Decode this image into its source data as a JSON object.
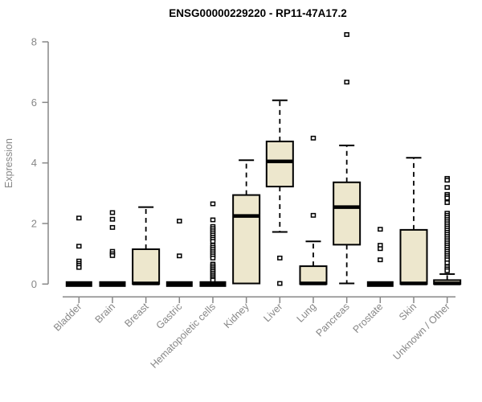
{
  "colors": {
    "background": "#ffffff",
    "box_fill": "#EDE7CD",
    "box_border": "#000000",
    "median": "#000000",
    "whisker": "#000000",
    "axis": "#878787",
    "label_text": "#878787",
    "title_text": "#000000"
  },
  "chart_data": {
    "type": "boxplot",
    "title": "ENSG00000229220 - RP11-47A17.2",
    "xlabel": "",
    "ylabel": "Expression",
    "ylim": [
      0,
      8
    ],
    "yticks": [
      0,
      2,
      4,
      6,
      8
    ],
    "grid": false,
    "legend": null,
    "whisker_style": "dashed",
    "outlier_marker": "open-square",
    "categories": [
      "Bladder",
      "Brain",
      "Breast",
      "Gastric",
      "Hematopoietic cells",
      "Kidney",
      "Liver",
      "Lung",
      "Pancreas",
      "Prostate",
      "Skin",
      "Unknown / Other"
    ],
    "series": [
      {
        "name": "Bladder",
        "q1": 0,
        "median": 0,
        "q3": 0,
        "whisker_low": 0,
        "whisker_high": 0,
        "outliers": [
          2.18,
          1.25,
          0.76,
          0.68,
          0.62,
          0.55
        ]
      },
      {
        "name": "Brain",
        "q1": 0,
        "median": 0,
        "q3": 0,
        "whisker_low": 0,
        "whisker_high": 0,
        "outliers": [
          2.36,
          2.14,
          1.87,
          1.08,
          1.0,
          0.94
        ]
      },
      {
        "name": "Breast",
        "q1": 0,
        "median": 0.02,
        "q3": 1.15,
        "whisker_low": 0,
        "whisker_high": 2.54,
        "outliers": []
      },
      {
        "name": "Gastric",
        "q1": 0,
        "median": 0,
        "q3": 0,
        "whisker_low": 0,
        "whisker_high": 0,
        "outliers": [
          2.08,
          0.93
        ]
      },
      {
        "name": "Hematopoietic cells",
        "q1": 0,
        "median": 0,
        "q3": 0,
        "whisker_low": 0,
        "whisker_high": 0,
        "outliers": [
          2.65,
          2.12,
          1.9,
          1.83,
          1.76,
          1.69,
          1.62,
          1.55,
          1.48,
          1.41,
          1.28,
          1.21,
          1.14,
          1.07,
          1.0,
          0.93,
          0.86,
          0.66,
          0.6,
          0.54,
          0.48,
          0.42,
          0.36,
          0.3,
          0.24,
          0.18,
          0.13
        ]
      },
      {
        "name": "Kidney",
        "q1": 0.02,
        "median": 2.25,
        "q3": 2.94,
        "whisker_low": 0,
        "whisker_high": 4.09,
        "outliers": []
      },
      {
        "name": "Liver",
        "q1": 3.22,
        "median": 4.05,
        "q3": 4.71,
        "whisker_low": 1.72,
        "whisker_high": 6.07,
        "outliers": [
          0.86,
          0.02
        ]
      },
      {
        "name": "Lung",
        "q1": 0,
        "median": 0.02,
        "q3": 0.59,
        "whisker_low": 0,
        "whisker_high": 1.41,
        "outliers": [
          4.82,
          2.27
        ]
      },
      {
        "name": "Pancreas",
        "q1": 1.3,
        "median": 2.54,
        "q3": 3.36,
        "whisker_low": 0.02,
        "whisker_high": 4.58,
        "outliers": [
          8.24,
          6.67
        ]
      },
      {
        "name": "Prostate",
        "q1": 0,
        "median": 0,
        "q3": 0,
        "whisker_low": 0,
        "whisker_high": 0,
        "outliers": [
          1.81,
          1.28,
          1.17,
          0.8
        ]
      },
      {
        "name": "Skin",
        "q1": 0,
        "median": 0.02,
        "q3": 1.79,
        "whisker_low": 0,
        "whisker_high": 4.17,
        "outliers": []
      },
      {
        "name": "Unknown / Other",
        "q1": 0,
        "median": 0.02,
        "q3": 0.13,
        "whisker_low": 0,
        "whisker_high": 0.33,
        "outliers": [
          3.49,
          3.43,
          3.19,
          2.96,
          2.9,
          2.84,
          2.69,
          2.34,
          2.27,
          2.2,
          2.13,
          2.06,
          1.99,
          1.92,
          1.85,
          1.78,
          1.71,
          1.64,
          1.57,
          1.5,
          1.43,
          1.36,
          1.29,
          1.22,
          1.15,
          1.08,
          1.01,
          0.94,
          0.87,
          0.8,
          0.7,
          0.57,
          0.5,
          0.44
        ]
      }
    ]
  }
}
